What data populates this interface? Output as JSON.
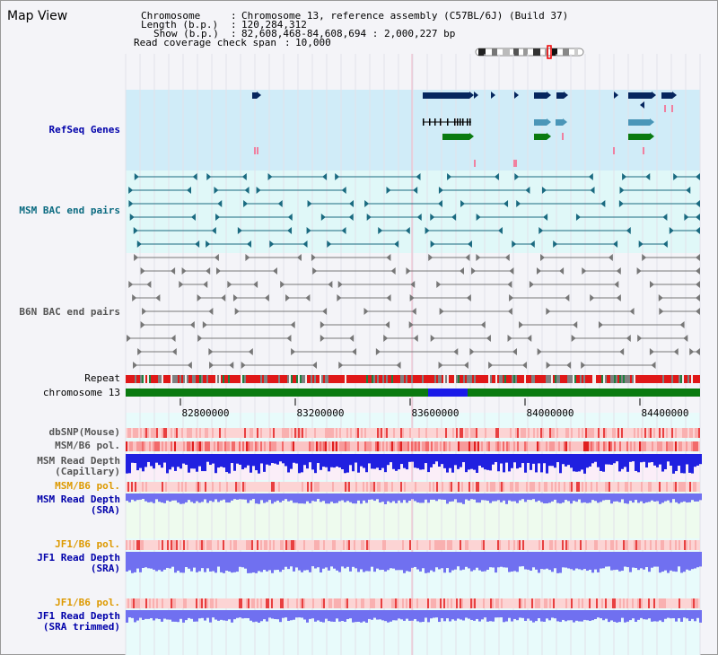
{
  "view": {
    "title": "Map View",
    "chromosome_label": "Chromosome",
    "chromosome_value": "Chromosome 13, reference assembly (C57BL/6J) (Build 37)",
    "length_label": "Length (b.p.)",
    "length_value": "120,284,312",
    "show_label": "Show (b.p.)",
    "show_value": "82,608,468-84,608,694 : 2,000,227 bp",
    "coverage_label": "Read coverage check span",
    "coverage_value": "10,000"
  },
  "tracks": {
    "refseq": "RefSeq Genes",
    "msm_bac": "MSM BAC end pairs",
    "b6n_bac": "B6N BAC end pairs",
    "repeat": "Repeat",
    "chromosome": "chromosome 13",
    "dbsnp": "dbSNP(Mouse)",
    "msm_b6_pol": "MSM/B6 pol.",
    "msm_depth_cap": "MSM Read Depth",
    "msm_depth_cap_sub": "(Capillary)",
    "msm_b6_pol2": "MSM/B6 pol.",
    "msm_depth_sra": "MSM Read Depth",
    "msm_depth_sra_sub": "(SRA)",
    "jf1_b6_pol": "JF1/B6 pol.",
    "jf1_depth_sra": "JF1 Read Depth",
    "jf1_depth_sra_sub": "(SRA)",
    "jf1_b6_pol2": "JF1/B6 pol.",
    "jf1_depth_trim": "JF1 Read Depth",
    "jf1_depth_trim_sub": "(SRA trimmed)"
  },
  "ruler": {
    "ticks": [
      "82800000",
      "83200000",
      "83600000",
      "84000000",
      "84400000"
    ]
  },
  "colors": {
    "refseq_bg": "#d0ecf8",
    "msm_bg": "#e0f8f8",
    "gene_navy": "#06265e",
    "gene_teal": "#4a96b8",
    "gene_green": "#0a7a10",
    "msm_line": "#1a6a80",
    "b6n_line": "#777777",
    "chromosome_green": "#0a7a10",
    "chromosome_highlight": "#1a1ae8",
    "label_blue": "#0000aa",
    "label_teal": "#0a6a80",
    "label_gray": "#555555",
    "label_orange": "#dd9900",
    "depth_blue": "#2020e0",
    "depth_light": "#7070f0"
  }
}
